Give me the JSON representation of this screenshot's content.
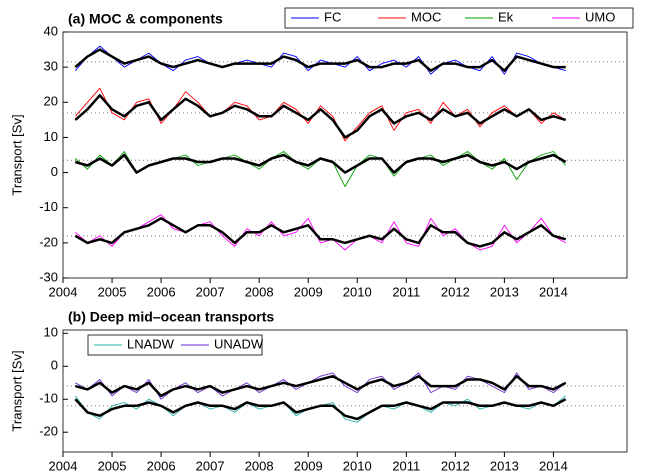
{
  "chart_data": [
    {
      "type": "line",
      "title": "(a) MOC & components",
      "ylabel": "Transport [Sv]",
      "legend": "top-right",
      "x": [
        2004.25,
        2004.5,
        2004.75,
        2005,
        2005.25,
        2005.5,
        2005.75,
        2006,
        2006.25,
        2006.5,
        2006.75,
        2007,
        2007.25,
        2007.5,
        2007.75,
        2008,
        2008.25,
        2008.5,
        2008.75,
        2009,
        2009.25,
        2009.5,
        2009.75,
        2010,
        2010.25,
        2010.5,
        2010.75,
        2011,
        2011.25,
        2011.5,
        2011.75,
        2012,
        2012.25,
        2012.5,
        2012.75,
        2013,
        2013.25,
        2013.5,
        2013.75,
        2014,
        2014.25
      ],
      "xlim": [
        2004,
        2015.5
      ],
      "xticks": [
        2004,
        2005,
        2006,
        2007,
        2008,
        2009,
        2010,
        2011,
        2012,
        2013,
        2014
      ],
      "ylim": [
        -30,
        40
      ],
      "yticks": [
        -30,
        -20,
        -10,
        0,
        10,
        20,
        30,
        40
      ],
      "series": [
        {
          "name": "FC",
          "color": "#0000ff",
          "mean": 31.5,
          "values": [
            29,
            33,
            36,
            33,
            30,
            32,
            34,
            31,
            29,
            32,
            33,
            31,
            30,
            31,
            32,
            31,
            30,
            34,
            33,
            29,
            32,
            31,
            30,
            33,
            29,
            31,
            32,
            30,
            33,
            28,
            31,
            32,
            30,
            29,
            33,
            28,
            34,
            33,
            31,
            30,
            29
          ]
        },
        {
          "name": "MOC",
          "color": "#ff0000",
          "mean": 17,
          "values": [
            16,
            20,
            24,
            17,
            15,
            20,
            21,
            14,
            18,
            23,
            20,
            16,
            17,
            20,
            19,
            15,
            16,
            20,
            18,
            14,
            19,
            16,
            9,
            13,
            17,
            19,
            12,
            17,
            18,
            14,
            20,
            16,
            18,
            13,
            17,
            19,
            16,
            18,
            14,
            17,
            15
          ]
        },
        {
          "name": "Ek",
          "color": "#00a000",
          "mean": 3.5,
          "values": [
            4,
            1,
            5,
            2,
            6,
            0,
            2,
            3,
            4,
            5,
            2,
            3,
            4,
            5,
            3,
            1,
            4,
            6,
            3,
            1,
            4,
            3,
            -4,
            2,
            5,
            4,
            -1,
            3,
            4,
            5,
            2,
            4,
            6,
            3,
            1,
            4,
            -2,
            3,
            5,
            6,
            2
          ]
        },
        {
          "name": "UMO",
          "color": "#ff00ff",
          "mean": -18,
          "values": [
            -17,
            -20,
            -18,
            -21,
            -17,
            -16,
            -14,
            -12,
            -16,
            -17,
            -15,
            -14,
            -18,
            -21,
            -16,
            -18,
            -14,
            -18,
            -17,
            -13,
            -20,
            -19,
            -22,
            -19,
            -18,
            -20,
            -14,
            -20,
            -21,
            -13,
            -18,
            -16,
            -20,
            -22,
            -21,
            -15,
            -20,
            -17,
            -13,
            -18,
            -20
          ]
        }
      ],
      "smoothed": [
        {
          "color": "#000000",
          "values": [
            30,
            33,
            35,
            33,
            31,
            32,
            33,
            31,
            30,
            31,
            32,
            31,
            30,
            31,
            31,
            31,
            31,
            33,
            32,
            30,
            31,
            31,
            31,
            32,
            30,
            30,
            31,
            31,
            32,
            29,
            31,
            31,
            30,
            30,
            32,
            29,
            33,
            32,
            31,
            30,
            30
          ]
        },
        {
          "color": "#000000",
          "values": [
            15,
            18,
            22,
            18,
            16,
            19,
            20,
            15,
            18,
            21,
            19,
            16,
            17,
            19,
            18,
            16,
            16,
            19,
            17,
            15,
            18,
            15,
            10,
            12,
            16,
            18,
            14,
            16,
            17,
            15,
            18,
            16,
            17,
            14,
            16,
            18,
            16,
            18,
            15,
            16,
            15
          ]
        },
        {
          "color": "#000000",
          "values": [
            3,
            2,
            4,
            2,
            5,
            0,
            2,
            3,
            4,
            4,
            3,
            3,
            4,
            4,
            3,
            2,
            4,
            5,
            3,
            2,
            4,
            3,
            0,
            2,
            4,
            4,
            0,
            3,
            4,
            4,
            3,
            4,
            5,
            3,
            2,
            3,
            1,
            3,
            4,
            5,
            3
          ]
        },
        {
          "color": "#000000",
          "values": [
            -18,
            -20,
            -19,
            -20,
            -17,
            -16,
            -15,
            -13,
            -15,
            -17,
            -15,
            -15,
            -17,
            -20,
            -17,
            -17,
            -15,
            -17,
            -16,
            -15,
            -19,
            -19,
            -20,
            -19,
            -18,
            -19,
            -16,
            -19,
            -20,
            -15,
            -17,
            -17,
            -20,
            -21,
            -20,
            -17,
            -19,
            -17,
            -15,
            -18,
            -19
          ]
        }
      ]
    },
    {
      "type": "line",
      "title": "(b) Deep mid–ocean transports",
      "ylabel": "Transport [Sv]",
      "legend": "top-left",
      "x": [
        2004.25,
        2004.5,
        2004.75,
        2005,
        2005.25,
        2005.5,
        2005.75,
        2006,
        2006.25,
        2006.5,
        2006.75,
        2007,
        2007.25,
        2007.5,
        2007.75,
        2008,
        2008.25,
        2008.5,
        2008.75,
        2009,
        2009.25,
        2009.5,
        2009.75,
        2010,
        2010.25,
        2010.5,
        2010.75,
        2011,
        2011.25,
        2011.5,
        2011.75,
        2012,
        2012.25,
        2012.5,
        2012.75,
        2013,
        2013.25,
        2013.5,
        2013.75,
        2014,
        2014.25
      ],
      "xlim": [
        2004,
        2015.5
      ],
      "xticks": [
        2004,
        2005,
        2006,
        2007,
        2008,
        2009,
        2010,
        2011,
        2012,
        2013,
        2014
      ],
      "ylim": [
        -26,
        11
      ],
      "yticks": [
        -20,
        -10,
        0,
        10
      ],
      "series": [
        {
          "name": "LNADW",
          "color": "#20b0a8",
          "mean": -12,
          "values": [
            -9,
            -14,
            -16,
            -12,
            -11,
            -13,
            -10,
            -12,
            -15,
            -12,
            -11,
            -13,
            -12,
            -14,
            -11,
            -13,
            -12,
            -11,
            -15,
            -13,
            -12,
            -11,
            -16,
            -17,
            -14,
            -12,
            -13,
            -11,
            -12,
            -14,
            -11,
            -12,
            -10,
            -13,
            -12,
            -11,
            -12,
            -13,
            -11,
            -12,
            -9
          ]
        },
        {
          "name": "UNADW",
          "color": "#6a2ad0",
          "mean": -6,
          "values": [
            -5,
            -7,
            -4,
            -9,
            -6,
            -8,
            -4,
            -10,
            -7,
            -5,
            -8,
            -6,
            -9,
            -7,
            -5,
            -8,
            -6,
            -4,
            -7,
            -5,
            -3,
            -2,
            -6,
            -8,
            -4,
            -3,
            -7,
            -5,
            -2,
            -8,
            -6,
            -7,
            -3,
            -4,
            -6,
            -8,
            -2,
            -7,
            -6,
            -8,
            -5
          ]
        }
      ],
      "smoothed": [
        {
          "color": "#000000",
          "values": [
            -10,
            -14,
            -15,
            -13,
            -12,
            -12,
            -11,
            -12,
            -14,
            -12,
            -11,
            -12,
            -12,
            -13,
            -11,
            -12,
            -12,
            -11,
            -14,
            -13,
            -12,
            -12,
            -15,
            -16,
            -14,
            -12,
            -12,
            -11,
            -12,
            -13,
            -11,
            -11,
            -11,
            -12,
            -12,
            -11,
            -12,
            -12,
            -11,
            -12,
            -10
          ]
        },
        {
          "color": "#000000",
          "values": [
            -6,
            -7,
            -5,
            -8,
            -6,
            -7,
            -5,
            -9,
            -7,
            -6,
            -7,
            -6,
            -8,
            -7,
            -6,
            -7,
            -6,
            -5,
            -6,
            -5,
            -4,
            -3,
            -5,
            -7,
            -5,
            -4,
            -6,
            -5,
            -3,
            -6,
            -6,
            -6,
            -4,
            -4,
            -5,
            -7,
            -3,
            -6,
            -6,
            -7,
            -5
          ]
        }
      ]
    }
  ]
}
